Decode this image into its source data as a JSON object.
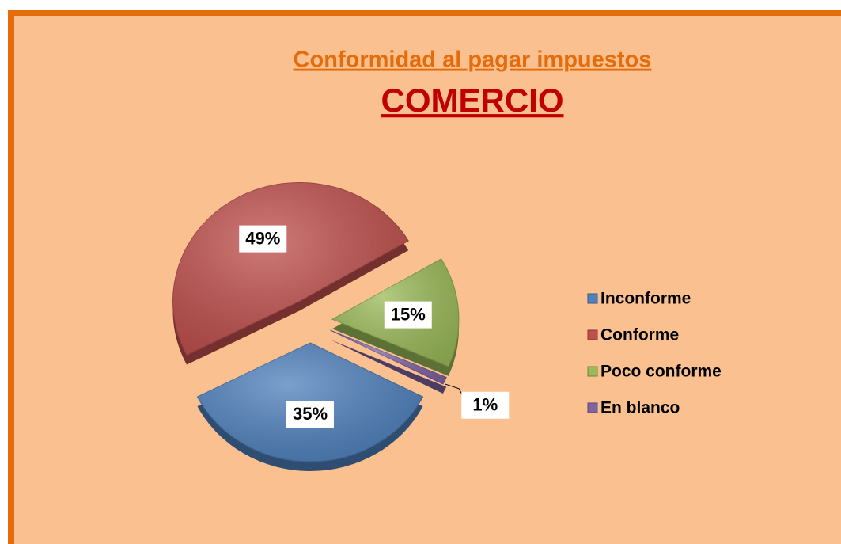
{
  "chart_data": {
    "type": "pie",
    "title": "Conformidad al pagar impuestos",
    "subtitle": "COMERCIO",
    "categories": [
      "Inconforme",
      "Conforme",
      "Poco conforme",
      "En blanco"
    ],
    "values": [
      35,
      49,
      15,
      1
    ],
    "value_labels": [
      "35%",
      "49%",
      "15%",
      "1%"
    ],
    "colors": [
      "#4f81bd",
      "#c0504d",
      "#9bbb59",
      "#8064a2"
    ],
    "legend": "right"
  }
}
